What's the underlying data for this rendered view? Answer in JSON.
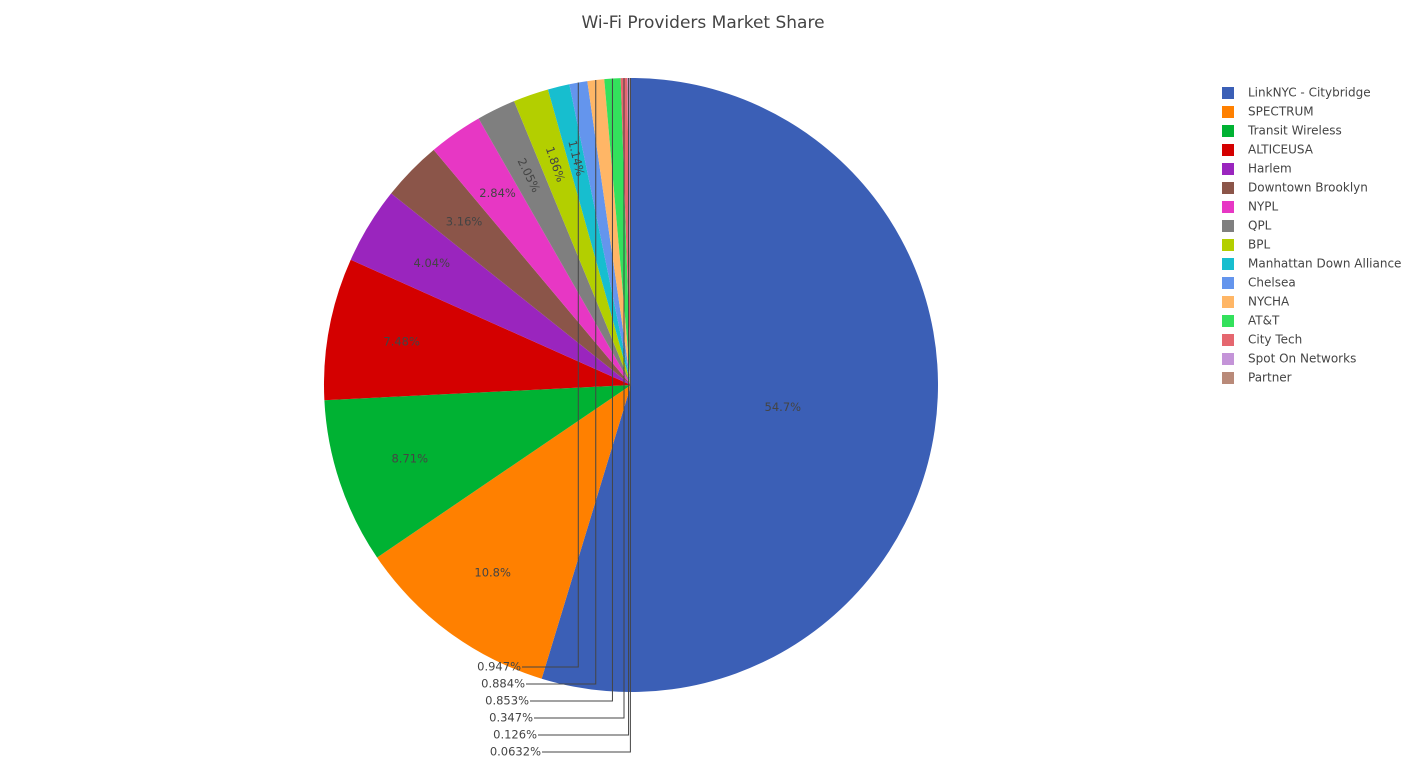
{
  "chart_data": {
    "type": "pie",
    "title": "Wi-Fi Providers Market Share",
    "legend_position": "right",
    "direction": "clockwise",
    "slices": [
      {
        "name": "LinkNYC - Citybridge",
        "value": 54.7,
        "label": "54.7%",
        "color": "#3b5fb6"
      },
      {
        "name": "SPECTRUM",
        "value": 10.8,
        "label": "10.8%",
        "color": "#ff8000"
      },
      {
        "name": "Transit Wireless",
        "value": 8.71,
        "label": "8.71%",
        "color": "#00b233"
      },
      {
        "name": "ALTICEUSA",
        "value": 7.48,
        "label": "7.48%",
        "color": "#d40000"
      },
      {
        "name": "Harlem",
        "value": 4.04,
        "label": "4.04%",
        "color": "#9a25be"
      },
      {
        "name": "Downtown Brooklyn",
        "value": 3.16,
        "label": "3.16%",
        "color": "#8b5549"
      },
      {
        "name": "NYPL",
        "value": 2.84,
        "label": "2.84%",
        "color": "#e737c4"
      },
      {
        "name": "QPL",
        "value": 2.05,
        "label": "2.05%",
        "color": "#7f7f7f"
      },
      {
        "name": "BPL",
        "value": 1.86,
        "label": "1.86%",
        "color": "#b3cf00"
      },
      {
        "name": "Manhattan Down Alliance",
        "value": 1.14,
        "label": "1.14%",
        "color": "#17becf"
      },
      {
        "name": "Chelsea",
        "value": 0.947,
        "label": "0.947%",
        "color": "#6495ed"
      },
      {
        "name": "NYCHA",
        "value": 0.884,
        "label": "0.884%",
        "color": "#ffb666"
      },
      {
        "name": "AT&T",
        "value": 0.853,
        "label": "0.853%",
        "color": "#33e15c"
      },
      {
        "name": "City Tech",
        "value": 0.347,
        "label": "0.347%",
        "color": "#e5676f"
      },
      {
        "name": "Spot On Networks",
        "value": 0.126,
        "label": "0.126%",
        "color": "#c494d8"
      },
      {
        "name": "Partner",
        "value": 0.0632,
        "label": "0.0632%",
        "color": "#b98a79"
      }
    ]
  }
}
